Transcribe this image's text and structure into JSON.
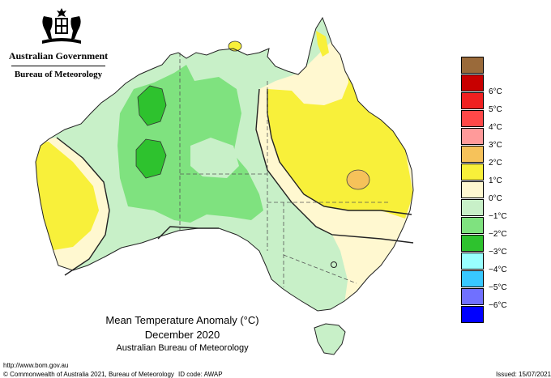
{
  "header": {
    "government": "Australian Government",
    "bureau": "Bureau of Meteorology"
  },
  "map": {
    "title": "Mean Temperature Anomaly (°C)",
    "period": "December 2020",
    "source": "Australian Bureau of Meteorology",
    "colors": {
      "minus2": "#2ec22e",
      "minus1": "#7fe27f",
      "zero": "#c8f0c8",
      "plus0": "#fff8d0",
      "plus1": "#f8f03a",
      "plus2": "#f6c25a",
      "ocean": "#ffffff"
    }
  },
  "legend": {
    "items": [
      {
        "label": "",
        "color": "#9a6a3a"
      },
      {
        "label": "6°C",
        "color": "#c80000"
      },
      {
        "label": "5°C",
        "color": "#f02020"
      },
      {
        "label": "4°C",
        "color": "#ff4848"
      },
      {
        "label": "3°C",
        "color": "#ff9a9a"
      },
      {
        "label": "2°C",
        "color": "#f6c25a"
      },
      {
        "label": "1°C",
        "color": "#f8f03a"
      },
      {
        "label": "0°C",
        "color": "#fff8d0"
      },
      {
        "label": "−1°C",
        "color": "#c8f0c8"
      },
      {
        "label": "−2°C",
        "color": "#7fe27f"
      },
      {
        "label": "−3°C",
        "color": "#2ec22e"
      },
      {
        "label": "−4°C",
        "color": "#99ffff"
      },
      {
        "label": "−5°C",
        "color": "#38c8ff"
      },
      {
        "label": "−6°C",
        "color": "#7070ff"
      },
      {
        "label": "",
        "color": "#0000ff"
      }
    ]
  },
  "footer": {
    "url": "http://www.bom.gov.au",
    "copyright": "© Commonwealth of Australia 2021, Bureau of Meteorology",
    "id_code": "ID code: AWAP",
    "issued": "Issued: 15/07/2021"
  }
}
